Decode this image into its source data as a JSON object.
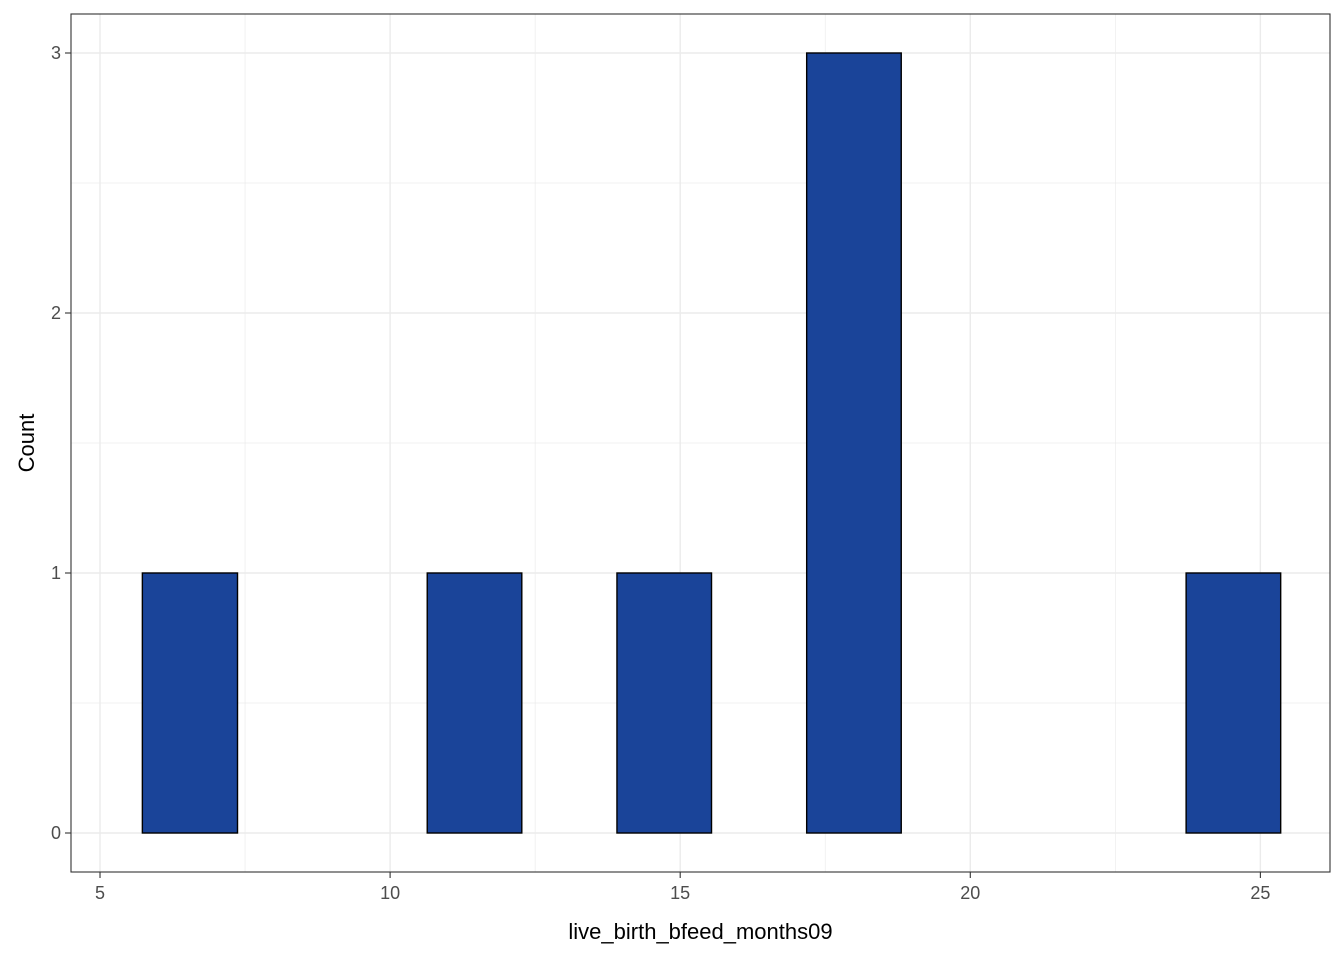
{
  "chart_data": {
    "type": "bar",
    "subtype": "histogram",
    "title": "",
    "xlabel": "live_birth_bfeed_months09",
    "ylabel": "Count",
    "xlim": [
      4.5,
      26.2
    ],
    "ylim": [
      -0.15,
      3.15
    ],
    "x_ticks": [
      5,
      10,
      15,
      20,
      25
    ],
    "x_tick_labels": [
      "5",
      "10",
      "15",
      "20",
      "25"
    ],
    "x_minor_ticks": [
      7.5,
      12.5,
      17.5,
      22.5
    ],
    "y_ticks": [
      0,
      1,
      2,
      3
    ],
    "y_tick_labels": [
      "0",
      "1",
      "2",
      "3"
    ],
    "y_minor_ticks": [
      0.5,
      1.5,
      2.5
    ],
    "bin_width": 1.635,
    "bins": [
      {
        "start": 5.73,
        "end": 7.37,
        "count": 1
      },
      {
        "start": 7.37,
        "end": 9.0,
        "count": 0
      },
      {
        "start": 9.0,
        "end": 10.64,
        "count": 0
      },
      {
        "start": 10.64,
        "end": 12.27,
        "count": 1
      },
      {
        "start": 12.27,
        "end": 13.91,
        "count": 0
      },
      {
        "start": 13.91,
        "end": 15.54,
        "count": 1
      },
      {
        "start": 15.54,
        "end": 17.18,
        "count": 0
      },
      {
        "start": 17.18,
        "end": 18.81,
        "count": 3
      },
      {
        "start": 18.81,
        "end": 20.45,
        "count": 0
      },
      {
        "start": 20.45,
        "end": 22.08,
        "count": 0
      },
      {
        "start": 22.08,
        "end": 23.72,
        "count": 0
      },
      {
        "start": 23.72,
        "end": 25.35,
        "count": 1
      }
    ],
    "grid": true,
    "colors": {
      "bar_fill": "#1a4499",
      "bar_stroke": "#000000",
      "grid": "#ebebeb",
      "panel_border": "#333333",
      "tick_text": "#4d4d4d"
    }
  }
}
